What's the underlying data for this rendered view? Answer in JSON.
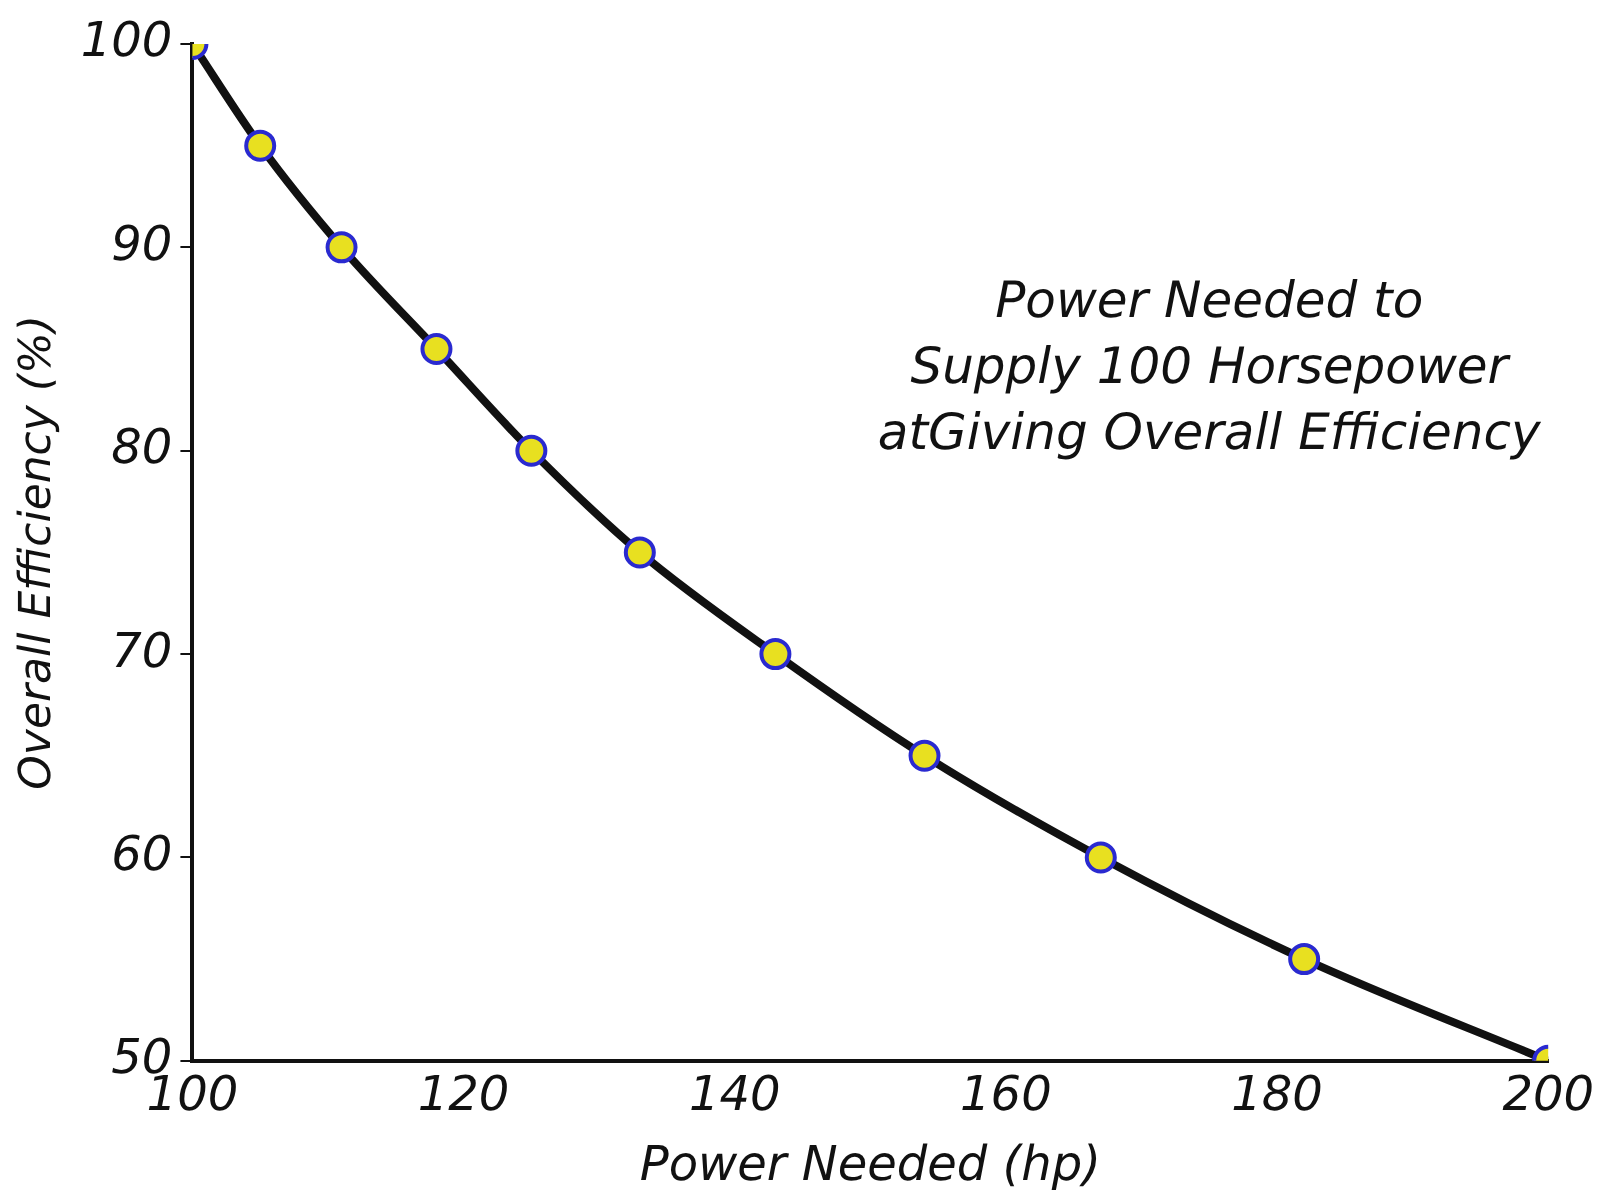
{
  "chart_data": {
    "type": "line",
    "title": "Power Needed to\nSupply 100 Horsepower\natGiving Overall Efficiency",
    "xlabel": "Power Needed (hp)",
    "ylabel": "Overall Efficiency (%)",
    "x": [
      100,
      105,
      111,
      118,
      125,
      133,
      143,
      154,
      167,
      182,
      200
    ],
    "series": [
      {
        "color": "#111111",
        "values": [
          100,
          95,
          90,
          85,
          80,
          75,
          70,
          65,
          60,
          55,
          50
        ]
      }
    ],
    "xlim": [
      100,
      200
    ],
    "xticks": [
      100,
      120,
      140,
      160,
      180,
      200
    ],
    "ylim": [
      50,
      100
    ],
    "yticks": [
      50,
      60,
      70,
      80,
      90,
      100
    ],
    "grid": false,
    "legend": false,
    "marker": "circle",
    "line_style": "solid"
  }
}
